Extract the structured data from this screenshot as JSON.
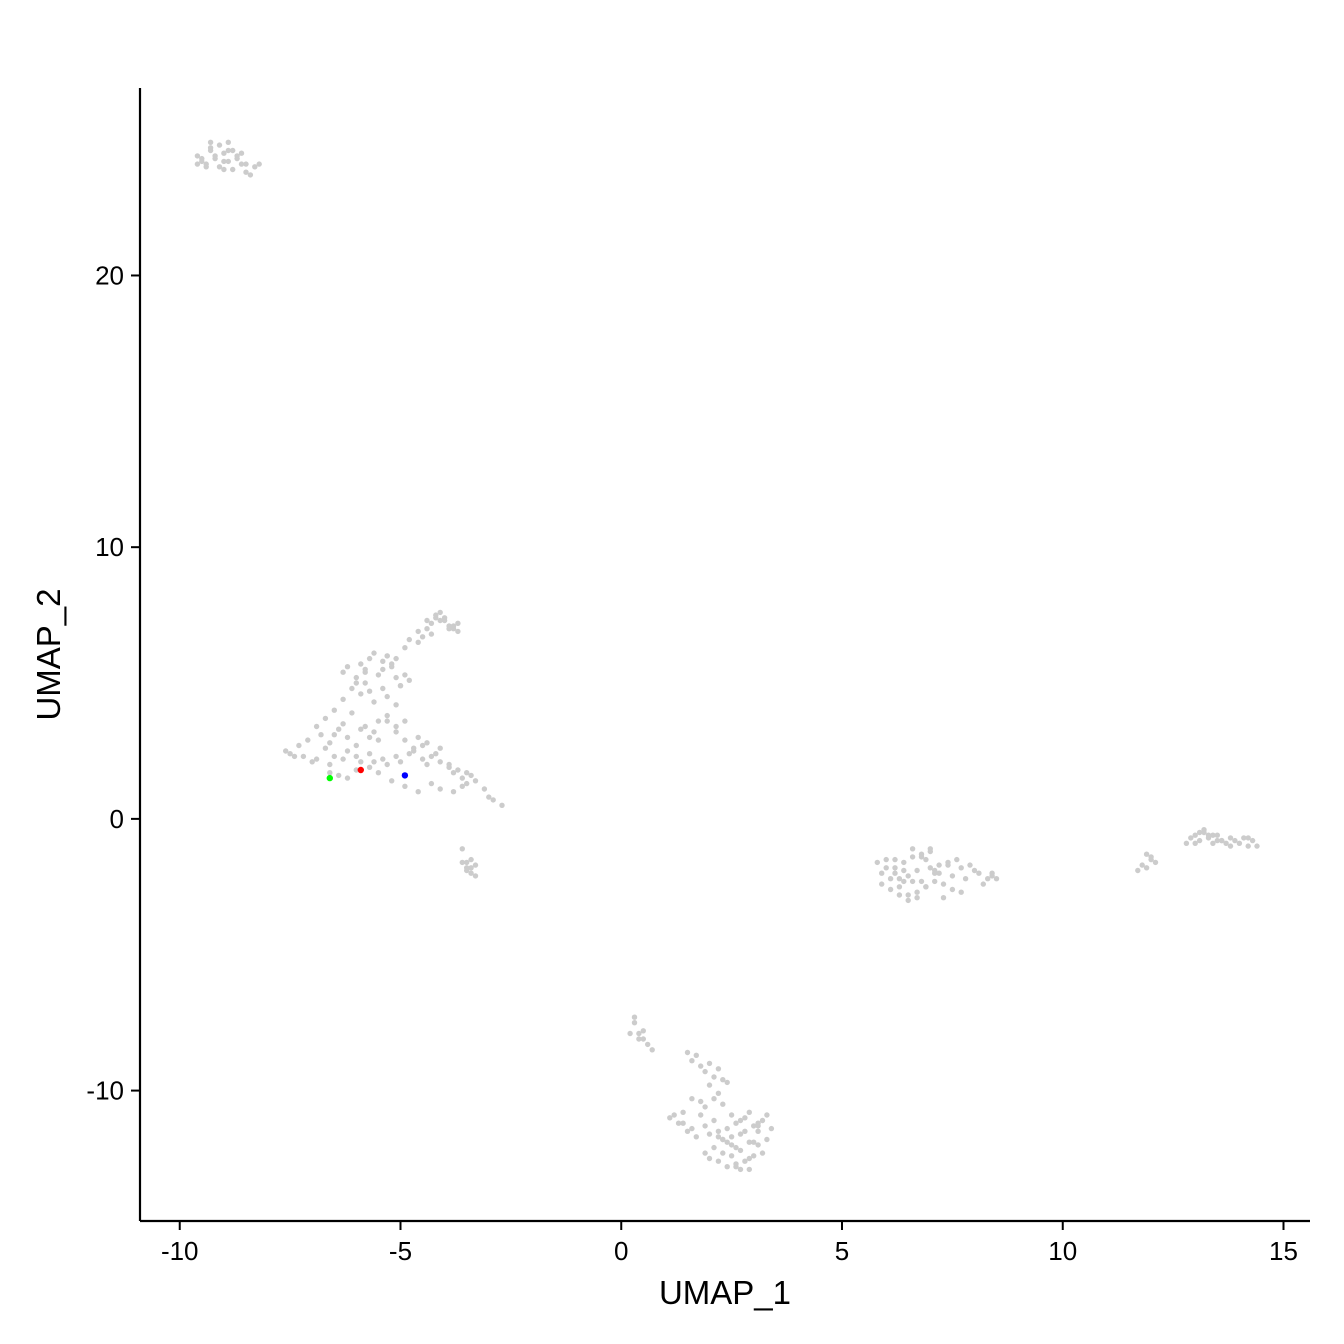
{
  "chart_data": {
    "type": "scatter",
    "xlabel": "UMAP_1",
    "ylabel": "UMAP_2",
    "xlim": [
      -10.9,
      15.6
    ],
    "ylim": [
      -14.8,
      26.9
    ],
    "xticks": [
      -10,
      -5,
      0,
      5,
      10,
      15
    ],
    "xtick_labels": [
      "-10",
      "-5",
      "0",
      "5",
      "10",
      "15"
    ],
    "yticks": [
      -10,
      0,
      10,
      20
    ],
    "ytick_labels": [
      "-10",
      "0",
      "10",
      "20"
    ],
    "grid": false,
    "legend": "none",
    "colors": {
      "background_cells": "#cccccc",
      "highlight_red": "#ff0000",
      "highlight_blue": "#0000ff",
      "highlight_green": "#00ff00",
      "axis": "#000000"
    },
    "series": [
      {
        "color": "#cccccc",
        "x": [
          -9.6,
          -9.5,
          -9.4,
          -9.3,
          -9.2,
          -9.1,
          -9.0,
          -8.9,
          -8.8,
          -8.7,
          -8.6,
          -8.5,
          -8.3,
          -9.5,
          -9.3,
          -9.1,
          -8.9,
          -8.7,
          -8.5,
          -9.4,
          -9.2,
          -9.0,
          -8.8,
          -8.6,
          -9.6,
          -9.0,
          -8.4,
          -9.3,
          -8.9,
          -8.2,
          -7.6,
          -7.5,
          -7.3,
          -7.2,
          -7.0,
          -6.9,
          -6.7,
          -6.6,
          -6.5,
          -6.3,
          -6.2,
          -6.0,
          -5.9,
          -5.7,
          -5.6,
          -5.4,
          -5.3,
          -5.1,
          -5.0,
          -4.8,
          -4.7,
          -4.5,
          -4.4,
          -4.2,
          -4.1,
          -3.9,
          -3.8,
          -3.6,
          -3.5,
          -3.4,
          -3.3,
          -3.1,
          -3.0,
          -2.9,
          -2.7,
          -7.4,
          -7.1,
          -6.8,
          -6.6,
          -6.4,
          -6.2,
          -6.0,
          -5.8,
          -5.6,
          -5.5,
          -5.3,
          -5.1,
          -4.9,
          -4.7,
          -4.5,
          -4.3,
          -4.1,
          -3.9,
          -3.7,
          -3.5,
          -6.9,
          -6.7,
          -6.5,
          -6.3,
          -6.1,
          -5.9,
          -5.7,
          -5.5,
          -5.3,
          -5.1,
          -4.9,
          -4.6,
          -4.4,
          -6.5,
          -6.3,
          -6.1,
          -5.9,
          -5.8,
          -5.6,
          -5.4,
          -5.3,
          -5.1,
          -5.0,
          -4.8,
          -6.3,
          -6.2,
          -6.0,
          -5.9,
          -5.8,
          -5.7,
          -5.5,
          -5.4,
          -5.3,
          -5.2,
          -5.1,
          -4.9,
          -6.0,
          -5.8,
          -5.7,
          -5.6,
          -5.4,
          -5.3,
          -5.2,
          -5.1,
          -5.0,
          -4.9,
          -4.8,
          -4.6,
          -4.5,
          -4.4,
          -4.3,
          -4.2,
          -4.1,
          -4.0,
          -3.9,
          -3.8,
          -3.7,
          -4.6,
          -4.4,
          -4.2,
          -4.0,
          -3.9,
          -4.3,
          -4.1,
          -3.8,
          -3.7,
          -6.6,
          -6.4,
          -6.2,
          -6.0,
          -5.7,
          -5.5,
          -5.2,
          -4.9,
          -4.6,
          -4.3,
          -4.1,
          -3.8,
          -3.6,
          -3.6,
          -3.5,
          -3.4,
          -3.3,
          -3.4,
          -3.5,
          -3.6,
          -3.3,
          -3.4,
          -3.5,
          0.2,
          0.3,
          0.4,
          0.5,
          0.6,
          0.7,
          0.4,
          0.5,
          0.3,
          1.1,
          1.3,
          1.4,
          1.5,
          1.6,
          1.7,
          1.8,
          1.9,
          2.0,
          2.1,
          2.2,
          2.3,
          2.4,
          2.5,
          2.6,
          2.7,
          2.8,
          2.9,
          3.0,
          3.1,
          3.2,
          3.3,
          3.4,
          1.5,
          1.6,
          1.7,
          1.8,
          1.9,
          2.0,
          2.1,
          2.2,
          2.3,
          2.0,
          2.2,
          2.4,
          1.8,
          1.9,
          2.1,
          2.3,
          2.5,
          2.7,
          2.9,
          3.1,
          3.3,
          1.9,
          2.0,
          2.1,
          2.2,
          2.3,
          2.4,
          2.5,
          2.6,
          2.7,
          2.8,
          2.9,
          3.0,
          3.1,
          3.2,
          2.2,
          2.4,
          2.6,
          2.8,
          3.0,
          2.5,
          2.7,
          2.9,
          2.3,
          2.6,
          3.1,
          1.4,
          1.6,
          1.2,
          5.8,
          5.9,
          6.0,
          6.1,
          6.2,
          6.3,
          6.4,
          6.5,
          6.6,
          6.7,
          6.8,
          6.9,
          7.0,
          7.1,
          7.2,
          7.3,
          7.4,
          7.5,
          7.6,
          7.7,
          7.8,
          7.9,
          8.0,
          8.1,
          8.2,
          8.3,
          8.4,
          5.9,
          6.1,
          6.3,
          6.5,
          6.7,
          6.9,
          7.1,
          7.3,
          7.5,
          7.7,
          6.0,
          6.2,
          6.4,
          6.6,
          6.8,
          7.0,
          7.2,
          7.4,
          6.3,
          6.5,
          6.7,
          6.9,
          7.1,
          6.6,
          6.8,
          7.0,
          6.2,
          6.4,
          8.4,
          8.5,
          11.7,
          11.8,
          11.9,
          12.0,
          12.1,
          11.9,
          12.0,
          12.8,
          12.9,
          13.0,
          13.1,
          13.2,
          13.3,
          13.4,
          13.5,
          13.6,
          13.7,
          13.8,
          13.9,
          14.0,
          14.1,
          14.2,
          14.3,
          14.4,
          13.0,
          13.2,
          13.4,
          13.6,
          13.8,
          14.2,
          13.1,
          13.3,
          13.5
        ],
        "y": [
          24.4,
          24.2,
          24.1,
          24.6,
          24.3,
          24.0,
          24.5,
          24.2,
          23.9,
          24.4,
          24.1,
          23.8,
          24.0,
          24.3,
          24.7,
          24.8,
          24.6,
          24.3,
          24.1,
          24.0,
          24.4,
          24.2,
          24.6,
          24.5,
          24.1,
          23.9,
          23.7,
          24.9,
          24.9,
          24.1,
          2.5,
          2.4,
          2.7,
          2.3,
          2.1,
          2.2,
          2.6,
          2.0,
          2.3,
          2.2,
          2.5,
          2.3,
          2.1,
          2.4,
          2.1,
          2.2,
          2.0,
          2.3,
          2.1,
          2.4,
          2.6,
          2.2,
          2.0,
          2.4,
          2.1,
          1.9,
          1.7,
          1.5,
          1.3,
          1.6,
          1.4,
          1.1,
          0.8,
          0.7,
          0.5,
          2.3,
          2.9,
          3.1,
          2.8,
          3.3,
          3.0,
          2.7,
          3.4,
          3.2,
          2.9,
          3.6,
          3.2,
          2.9,
          2.5,
          2.7,
          2.3,
          2.6,
          2.0,
          1.8,
          1.7,
          3.4,
          3.7,
          3.1,
          3.5,
          3.9,
          3.3,
          3.0,
          3.6,
          3.8,
          3.4,
          3.6,
          3.0,
          2.8,
          4.0,
          4.4,
          4.8,
          4.6,
          5.0,
          4.3,
          4.8,
          4.5,
          4.2,
          4.9,
          5.1,
          5.4,
          5.6,
          5.2,
          5.7,
          5.5,
          5.9,
          5.3,
          5.8,
          6.0,
          5.6,
          5.9,
          5.3,
          5.0,
          5.4,
          4.7,
          6.1,
          5.5,
          6.0,
          5.7,
          5.2,
          4.9,
          6.3,
          6.6,
          6.5,
          6.7,
          7.0,
          7.2,
          7.4,
          7.6,
          7.3,
          7.1,
          7.0,
          7.2,
          6.9,
          7.3,
          7.5,
          7.4,
          7.0,
          6.8,
          7.3,
          7.1,
          6.9,
          1.7,
          1.6,
          1.5,
          1.8,
          1.9,
          1.7,
          1.4,
          1.2,
          1.0,
          1.3,
          1.1,
          1.0,
          1.2,
          -1.1,
          -1.6,
          -1.8,
          -1.7,
          -2.0,
          -1.9,
          -1.6,
          -2.1,
          -1.5,
          -1.8,
          -7.9,
          -7.3,
          -8.1,
          -7.8,
          -8.3,
          -8.5,
          -7.9,
          -8.1,
          -7.5,
          -11.0,
          -11.2,
          -10.8,
          -11.5,
          -11.4,
          -11.7,
          -10.9,
          -11.3,
          -11.6,
          -11.1,
          -11.5,
          -11.8,
          -11.4,
          -11.7,
          -11.2,
          -11.6,
          -11.0,
          -11.9,
          -11.3,
          -11.5,
          -11.1,
          -11.8,
          -11.4,
          -8.6,
          -8.9,
          -8.7,
          -9.1,
          -9.3,
          -9.0,
          -9.5,
          -9.2,
          -9.6,
          -9.8,
          -10.1,
          -9.7,
          -10.4,
          -10.6,
          -10.3,
          -10.5,
          -10.9,
          -11.1,
          -10.8,
          -11.2,
          -10.9,
          -12.3,
          -12.5,
          -12.1,
          -12.6,
          -12.3,
          -12.8,
          -12.4,
          -12.7,
          -12.2,
          -12.6,
          -12.9,
          -12.4,
          -12.0,
          -12.3,
          -11.7,
          -11.9,
          -12.1,
          -11.5,
          -11.9,
          -12.0,
          -12.9,
          -12.5,
          -11.8,
          -12.8,
          -11.3,
          -11.2,
          -10.3,
          -10.9,
          -1.6,
          -2.0,
          -1.5,
          -2.2,
          -1.8,
          -2.5,
          -1.6,
          -2.1,
          -1.4,
          -1.9,
          -2.3,
          -1.5,
          -1.2,
          -2.0,
          -1.7,
          -2.4,
          -1.6,
          -2.1,
          -1.5,
          -1.8,
          -2.2,
          -1.7,
          -1.9,
          -2.0,
          -2.4,
          -2.2,
          -2.1,
          -2.4,
          -2.6,
          -2.2,
          -2.8,
          -2.7,
          -2.5,
          -2.3,
          -2.9,
          -2.6,
          -2.7,
          -1.8,
          -1.5,
          -1.9,
          -2.3,
          -1.4,
          -1.8,
          -2.0,
          -1.7,
          -2.8,
          -3.0,
          -2.9,
          -2.5,
          -1.9,
          -1.1,
          -1.3,
          -1.1,
          -2.0,
          -2.3,
          -2.0,
          -2.2,
          -1.9,
          -1.7,
          -1.8,
          -1.5,
          -1.6,
          -1.3,
          -1.4,
          -0.9,
          -0.7,
          -0.6,
          -0.8,
          -0.5,
          -0.7,
          -0.9,
          -0.6,
          -0.8,
          -0.9,
          -0.7,
          -0.8,
          -0.9,
          -0.7,
          -1.0,
          -0.8,
          -1.0,
          -0.9,
          -0.4,
          -0.6,
          -0.8,
          -1.0,
          -0.7,
          -0.5,
          -0.6,
          -0.8
        ]
      },
      {
        "color": "#ff0000",
        "x": [
          -5.9
        ],
        "y": [
          1.8
        ]
      },
      {
        "color": "#0000ff",
        "x": [
          -4.9
        ],
        "y": [
          1.6
        ]
      },
      {
        "color": "#00ff00",
        "x": [
          -6.6
        ],
        "y": [
          1.5
        ]
      }
    ]
  }
}
